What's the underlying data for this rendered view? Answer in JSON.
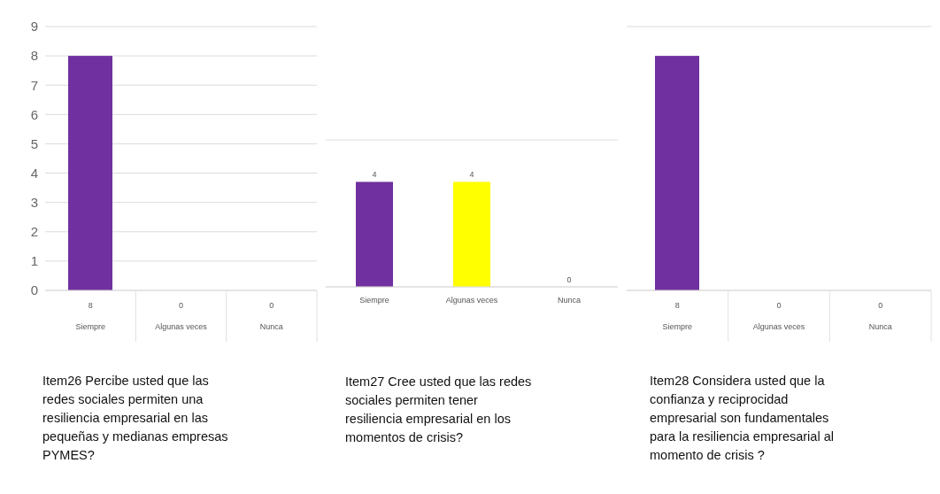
{
  "chart_data": [
    {
      "type": "bar",
      "title": "Item26 Percibe usted que las redes sociales permiten una resiliencia empresarial en las pequeñas y medianas empresas PYMES?",
      "categories": [
        "Siempre",
        "Algunas veces",
        "Nunca"
      ],
      "values": [
        8,
        0,
        0
      ],
      "color": "#7030a0",
      "ylim": [
        0,
        9
      ],
      "yticks": [
        0,
        1,
        2,
        3,
        4,
        5,
        6,
        7,
        8,
        9
      ],
      "grid": "y",
      "data_labels": true
    },
    {
      "type": "bar",
      "title": "Item27 Cree usted que las redes sociales permiten tener resiliencia empresarial en los momentos de crisis?",
      "categories": [
        "Siempre",
        "Algunas veces",
        "Nunca"
      ],
      "values": [
        4,
        4,
        0
      ],
      "colors": [
        "#7030a0",
        "#ffff00",
        "#7030a0"
      ],
      "grid": "y",
      "data_labels": true,
      "tick_labels": "x"
    },
    {
      "type": "bar",
      "title": "Item28 Considera usted que la confianza y reciprocidad empresarial son fundamentales para la resiliencia empresarial al momento de crisis ?",
      "categories": [
        "Siempre",
        "Algunas veces",
        "Nunca"
      ],
      "values": [
        8,
        0,
        0
      ],
      "color": "#7030a0",
      "ylim": [
        0,
        9
      ],
      "yticks": [
        0,
        1,
        2,
        3,
        4,
        5,
        6,
        7,
        8,
        9
      ],
      "grid": "y",
      "data_labels": true,
      "tick_labels": "x"
    }
  ]
}
